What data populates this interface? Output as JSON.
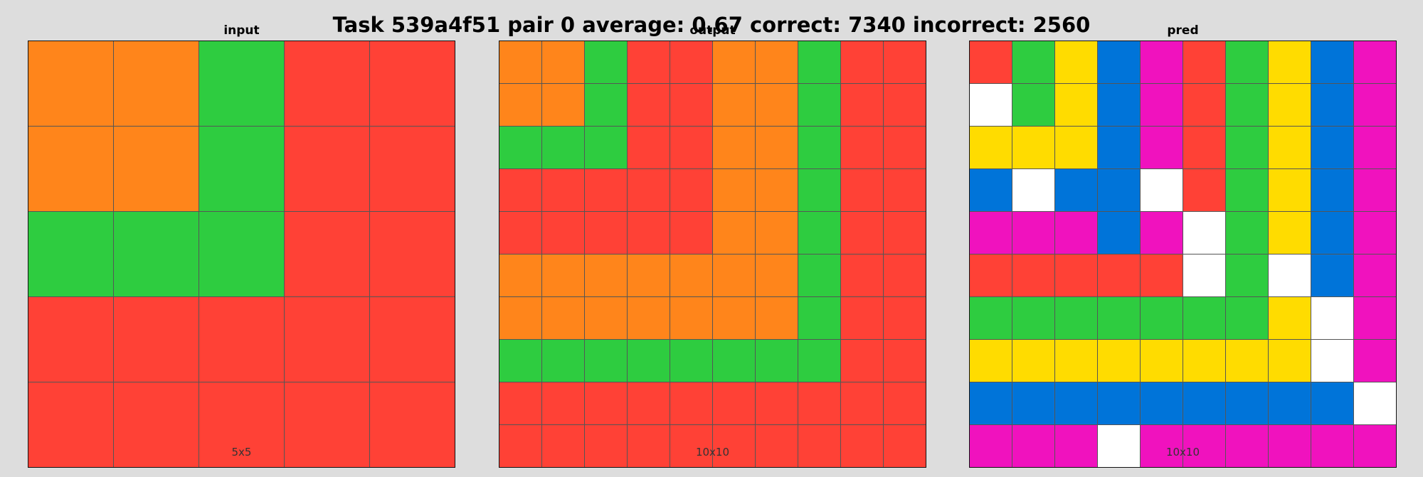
{
  "title": "Task 539a4f51 pair 0 average: 0.67 correct: 7340 incorrect: 2560",
  "palette": {
    "red": "#ff4136",
    "orange": "#ff851b",
    "green": "#2ecc40",
    "yellow": "#ffdc00",
    "blue": "#0074d9",
    "magenta": "#f012be",
    "white": "#ffffff"
  },
  "panels": [
    {
      "label": "input",
      "size": "5x5",
      "rows": [
        [
          "orange",
          "orange",
          "green",
          "red",
          "red"
        ],
        [
          "orange",
          "orange",
          "green",
          "red",
          "red"
        ],
        [
          "green",
          "green",
          "green",
          "red",
          "red"
        ],
        [
          "red",
          "red",
          "red",
          "red",
          "red"
        ],
        [
          "red",
          "red",
          "red",
          "red",
          "red"
        ]
      ]
    },
    {
      "label": "output",
      "size": "10x10",
      "rows": [
        [
          "orange",
          "orange",
          "green",
          "red",
          "red",
          "orange",
          "orange",
          "green",
          "red",
          "red"
        ],
        [
          "orange",
          "orange",
          "green",
          "red",
          "red",
          "orange",
          "orange",
          "green",
          "red",
          "red"
        ],
        [
          "green",
          "green",
          "green",
          "red",
          "red",
          "orange",
          "orange",
          "green",
          "red",
          "red"
        ],
        [
          "red",
          "red",
          "red",
          "red",
          "red",
          "orange",
          "orange",
          "green",
          "red",
          "red"
        ],
        [
          "red",
          "red",
          "red",
          "red",
          "red",
          "orange",
          "orange",
          "green",
          "red",
          "red"
        ],
        [
          "orange",
          "orange",
          "orange",
          "orange",
          "orange",
          "orange",
          "orange",
          "green",
          "red",
          "red"
        ],
        [
          "orange",
          "orange",
          "orange",
          "orange",
          "orange",
          "orange",
          "orange",
          "green",
          "red",
          "red"
        ],
        [
          "green",
          "green",
          "green",
          "green",
          "green",
          "green",
          "green",
          "green",
          "red",
          "red"
        ],
        [
          "red",
          "red",
          "red",
          "red",
          "red",
          "red",
          "red",
          "red",
          "red",
          "red"
        ],
        [
          "red",
          "red",
          "red",
          "red",
          "red",
          "red",
          "red",
          "red",
          "red",
          "red"
        ]
      ]
    },
    {
      "label": "pred",
      "size": "10x10",
      "rows": [
        [
          "red",
          "green",
          "yellow",
          "blue",
          "magenta",
          "red",
          "green",
          "yellow",
          "blue",
          "magenta"
        ],
        [
          "white",
          "green",
          "yellow",
          "blue",
          "magenta",
          "red",
          "green",
          "yellow",
          "blue",
          "magenta"
        ],
        [
          "yellow",
          "yellow",
          "yellow",
          "blue",
          "magenta",
          "red",
          "green",
          "yellow",
          "blue",
          "magenta"
        ],
        [
          "blue",
          "white",
          "blue",
          "blue",
          "white",
          "red",
          "green",
          "yellow",
          "blue",
          "magenta"
        ],
        [
          "magenta",
          "magenta",
          "magenta",
          "blue",
          "magenta",
          "white",
          "green",
          "yellow",
          "blue",
          "magenta"
        ],
        [
          "red",
          "red",
          "red",
          "red",
          "red",
          "white",
          "green",
          "white",
          "blue",
          "magenta"
        ],
        [
          "green",
          "green",
          "green",
          "green",
          "green",
          "green",
          "green",
          "yellow",
          "white",
          "magenta"
        ],
        [
          "yellow",
          "yellow",
          "yellow",
          "yellow",
          "yellow",
          "yellow",
          "yellow",
          "yellow",
          "white",
          "magenta"
        ],
        [
          "blue",
          "blue",
          "blue",
          "blue",
          "blue",
          "blue",
          "blue",
          "blue",
          "blue",
          "white"
        ],
        [
          "magenta",
          "magenta",
          "magenta",
          "white",
          "magenta",
          "magenta",
          "magenta",
          "magenta",
          "magenta",
          "magenta"
        ]
      ]
    }
  ]
}
